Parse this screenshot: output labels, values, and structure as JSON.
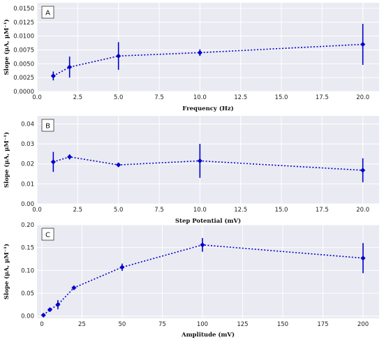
{
  "chart_data": [
    {
      "type": "line",
      "panel": "A",
      "xlabel": "Frequency (Hz)",
      "ylabel": "Slope (μA, μM⁻¹)",
      "xlim": [
        0,
        21
      ],
      "ylim": [
        0,
        0.016
      ],
      "x_ticks": [
        0,
        2.5,
        5,
        7.5,
        10,
        12.5,
        15,
        17.5,
        20
      ],
      "y_ticks": [
        0,
        0.0025,
        0.005,
        0.0075,
        0.01,
        0.0125,
        0.015
      ],
      "x_tick_labels": [
        "0.0",
        "2.5",
        "5.0",
        "7.5",
        "10.0",
        "12.5",
        "15.0",
        "17.5",
        "20.0"
      ],
      "y_tick_labels": [
        "0.0000",
        "0.0025",
        "0.0050",
        "0.0075",
        "0.0100",
        "0.0125",
        "0.0150"
      ],
      "grid": true,
      "x": [
        1,
        2,
        5,
        10,
        20
      ],
      "y": [
        0.0028,
        0.0044,
        0.0064,
        0.007,
        0.0085
      ],
      "err": [
        0.0008,
        0.0019,
        0.0025,
        0.0006,
        0.0037
      ]
    },
    {
      "type": "line",
      "panel": "B",
      "xlabel": "Step Potential (mV)",
      "ylabel": "Slope (μA, μM⁻¹)",
      "xlim": [
        0,
        21
      ],
      "ylim": [
        0,
        0.044
      ],
      "x_ticks": [
        0,
        2.5,
        5,
        7.5,
        10,
        12.5,
        15,
        17.5,
        20
      ],
      "y_ticks": [
        0,
        0.01,
        0.02,
        0.03,
        0.04
      ],
      "x_tick_labels": [
        "0.0",
        "2.5",
        "5.0",
        "7.5",
        "10.0",
        "12.5",
        "15.0",
        "17.5",
        "20.0"
      ],
      "y_tick_labels": [
        "0.00",
        "0.01",
        "0.02",
        "0.03",
        "0.04"
      ],
      "grid": true,
      "x": [
        1,
        2,
        5,
        10,
        20
      ],
      "y": [
        0.021,
        0.0235,
        0.0195,
        0.0215,
        0.0168
      ],
      "err": [
        0.005,
        0.0013,
        0.0004,
        0.0085,
        0.006
      ]
    },
    {
      "type": "line",
      "panel": "C",
      "xlabel": "Amplitude (mV)",
      "ylabel": "Slope (μA, μM⁻¹)",
      "xlim": [
        -3,
        210
      ],
      "ylim": [
        -0.005,
        0.2
      ],
      "x_ticks": [
        0,
        25,
        50,
        75,
        100,
        125,
        150,
        175,
        200
      ],
      "y_ticks": [
        0,
        0.05,
        0.1,
        0.15,
        0.2
      ],
      "x_tick_labels": [
        "0",
        "25",
        "50",
        "75",
        "100",
        "125",
        "150",
        "175",
        "200"
      ],
      "y_tick_labels": [
        "0.00",
        "0.05",
        "0.10",
        "0.15",
        "0.20"
      ],
      "grid": true,
      "x": [
        1,
        5,
        10,
        20,
        50,
        100,
        200
      ],
      "y": [
        0.002,
        0.014,
        0.025,
        0.062,
        0.107,
        0.156,
        0.127
      ],
      "err": [
        0.001,
        0.003,
        0.01,
        0.003,
        0.008,
        0.015,
        0.033
      ]
    }
  ],
  "colors": {
    "series": "#0000cc",
    "plot_background": "#eaeaf2",
    "grid": "#ffffff"
  }
}
